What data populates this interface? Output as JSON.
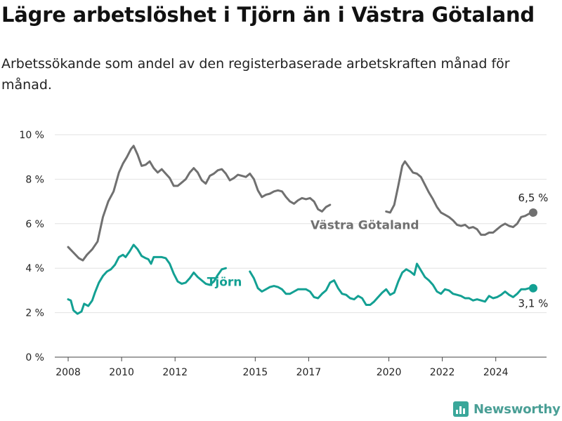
{
  "header": {
    "title": "Lägre arbetslöshet i Tjörn än i Västra Götaland",
    "subtitle": "Arbetssökande som andel av den registerbaserade arbetskraften månad för månad."
  },
  "brand": {
    "name": "Newsworthy",
    "logo_icon": "newsworthy-chart-logo-icon"
  },
  "colors": {
    "vg": "#707070",
    "tjorn": "#13a093",
    "grid": "#e2e2e2",
    "axis": "#444444",
    "text": "#222222"
  },
  "chart_data": {
    "type": "line",
    "title": "Lägre arbetslöshet i Tjörn än i Västra Götaland",
    "subtitle": "Arbetssökande som andel av den registerbaserade arbetskraften månad för månad.",
    "xlabel": "",
    "ylabel": "",
    "xlim": [
      2007.5,
      2025.9
    ],
    "ylim": [
      0,
      10
    ],
    "x_ticks": [
      2008,
      2010,
      2012,
      2015,
      2017,
      2020,
      2022,
      2024
    ],
    "y_ticks": [
      0,
      2,
      4,
      6,
      8,
      10
    ],
    "y_tick_labels": [
      "0 %",
      "2 %",
      "4 %",
      "6 %",
      "8 %",
      "10 %"
    ],
    "grid": "horizontal",
    "series": [
      {
        "name": "Västra Götaland",
        "key": "vg",
        "end_label": "6,5 %",
        "points": [
          [
            2008.0,
            4.95
          ],
          [
            2008.2,
            4.7
          ],
          [
            2008.4,
            4.45
          ],
          [
            2008.55,
            4.35
          ],
          [
            2008.7,
            4.6
          ],
          [
            2008.9,
            4.85
          ],
          [
            2009.1,
            5.2
          ],
          [
            2009.3,
            6.3
          ],
          [
            2009.5,
            7.0
          ],
          [
            2009.7,
            7.45
          ],
          [
            2009.9,
            8.3
          ],
          [
            2010.05,
            8.7
          ],
          [
            2010.2,
            9.0
          ],
          [
            2010.35,
            9.35
          ],
          [
            2010.45,
            9.5
          ],
          [
            2010.6,
            9.1
          ],
          [
            2010.75,
            8.6
          ],
          [
            2010.9,
            8.65
          ],
          [
            2011.05,
            8.8
          ],
          [
            2011.2,
            8.5
          ],
          [
            2011.35,
            8.3
          ],
          [
            2011.5,
            8.45
          ],
          [
            2011.65,
            8.25
          ],
          [
            2011.8,
            8.05
          ],
          [
            2011.95,
            7.7
          ],
          [
            2012.1,
            7.7
          ],
          [
            2012.25,
            7.85
          ],
          [
            2012.4,
            8.0
          ],
          [
            2012.55,
            8.3
          ],
          [
            2012.7,
            8.5
          ],
          [
            2012.85,
            8.3
          ],
          [
            2013.0,
            7.95
          ],
          [
            2013.15,
            7.8
          ],
          [
            2013.3,
            8.15
          ],
          [
            2013.45,
            8.25
          ],
          [
            2013.6,
            8.4
          ],
          [
            2013.75,
            8.45
          ],
          [
            2013.9,
            8.25
          ],
          [
            2014.05,
            7.95
          ],
          [
            2014.2,
            8.05
          ],
          [
            2014.35,
            8.2
          ],
          [
            2014.5,
            8.15
          ],
          [
            2014.65,
            8.1
          ],
          [
            2014.8,
            8.25
          ],
          [
            2014.95,
            8.0
          ],
          [
            2015.1,
            7.5
          ],
          [
            2015.25,
            7.2
          ],
          [
            2015.4,
            7.3
          ],
          [
            2015.55,
            7.35
          ],
          [
            2015.7,
            7.45
          ],
          [
            2015.85,
            7.5
          ],
          [
            2016.0,
            7.45
          ],
          [
            2016.15,
            7.2
          ],
          [
            2016.3,
            7.0
          ],
          [
            2016.45,
            6.9
          ],
          [
            2016.6,
            7.05
          ],
          [
            2016.75,
            7.15
          ],
          [
            2016.9,
            7.1
          ],
          [
            2017.05,
            7.15
          ],
          [
            2017.2,
            7.0
          ],
          [
            2017.35,
            6.65
          ],
          [
            2017.5,
            6.55
          ],
          [
            2017.65,
            6.75
          ],
          [
            2017.8,
            6.85
          ],
          [
            2017.95,
            6.85
          ],
          [
            2018.1,
            6.7
          ],
          [
            2018.25,
            6.55
          ],
          [
            2018.4,
            6.5
          ],
          [
            2018.55,
            6.45
          ],
          [
            2018.7,
            6.4
          ],
          [
            2018.85,
            6.45
          ],
          [
            2019.0,
            6.4
          ],
          [
            2019.15,
            6.3
          ],
          [
            2019.3,
            6.3
          ],
          [
            2019.45,
            6.35
          ],
          [
            2019.6,
            6.45
          ],
          [
            2019.75,
            6.5
          ],
          [
            2019.9,
            6.55
          ],
          [
            2020.05,
            6.5
          ],
          [
            2020.2,
            6.85
          ],
          [
            2020.35,
            7.7
          ],
          [
            2020.5,
            8.6
          ],
          [
            2020.6,
            8.8
          ],
          [
            2020.75,
            8.55
          ],
          [
            2020.9,
            8.3
          ],
          [
            2021.05,
            8.25
          ],
          [
            2021.2,
            8.1
          ],
          [
            2021.35,
            7.75
          ],
          [
            2021.5,
            7.4
          ],
          [
            2021.65,
            7.1
          ],
          [
            2021.8,
            6.75
          ],
          [
            2021.95,
            6.5
          ],
          [
            2022.1,
            6.4
          ],
          [
            2022.25,
            6.3
          ],
          [
            2022.4,
            6.15
          ],
          [
            2022.55,
            5.95
          ],
          [
            2022.7,
            5.9
          ],
          [
            2022.85,
            5.95
          ],
          [
            2023.0,
            5.8
          ],
          [
            2023.15,
            5.85
          ],
          [
            2023.3,
            5.75
          ],
          [
            2023.45,
            5.5
          ],
          [
            2023.6,
            5.5
          ],
          [
            2023.75,
            5.6
          ],
          [
            2023.9,
            5.6
          ],
          [
            2024.05,
            5.75
          ],
          [
            2024.2,
            5.9
          ],
          [
            2024.35,
            6.0
          ],
          [
            2024.5,
            5.9
          ],
          [
            2024.65,
            5.85
          ],
          [
            2024.8,
            6.0
          ],
          [
            2024.95,
            6.3
          ],
          [
            2025.1,
            6.35
          ],
          [
            2025.25,
            6.45
          ],
          [
            2025.4,
            6.5
          ]
        ]
      },
      {
        "name": "Tjörn",
        "key": "tjorn",
        "end_label": "3,1 %",
        "points": [
          [
            2008.0,
            2.6
          ],
          [
            2008.1,
            2.55
          ],
          [
            2008.2,
            2.1
          ],
          [
            2008.35,
            1.95
          ],
          [
            2008.5,
            2.05
          ],
          [
            2008.6,
            2.4
          ],
          [
            2008.75,
            2.3
          ],
          [
            2008.9,
            2.55
          ],
          [
            2009.0,
            2.9
          ],
          [
            2009.15,
            3.35
          ],
          [
            2009.3,
            3.65
          ],
          [
            2009.45,
            3.85
          ],
          [
            2009.6,
            3.95
          ],
          [
            2009.75,
            4.15
          ],
          [
            2009.9,
            4.5
          ],
          [
            2010.05,
            4.6
          ],
          [
            2010.15,
            4.5
          ],
          [
            2010.3,
            4.75
          ],
          [
            2010.45,
            5.05
          ],
          [
            2010.6,
            4.85
          ],
          [
            2010.75,
            4.55
          ],
          [
            2010.9,
            4.45
          ],
          [
            2011.0,
            4.4
          ],
          [
            2011.1,
            4.2
          ],
          [
            2011.2,
            4.5
          ],
          [
            2011.35,
            4.5
          ],
          [
            2011.5,
            4.5
          ],
          [
            2011.65,
            4.45
          ],
          [
            2011.8,
            4.2
          ],
          [
            2011.95,
            3.75
          ],
          [
            2012.1,
            3.4
          ],
          [
            2012.25,
            3.3
          ],
          [
            2012.4,
            3.35
          ],
          [
            2012.55,
            3.55
          ],
          [
            2012.7,
            3.8
          ],
          [
            2012.85,
            3.6
          ],
          [
            2013.0,
            3.45
          ],
          [
            2013.15,
            3.3
          ],
          [
            2013.3,
            3.25
          ],
          [
            2013.45,
            3.4
          ],
          [
            2013.6,
            3.7
          ],
          [
            2013.75,
            3.95
          ],
          [
            2013.9,
            4.0
          ],
          [
            2014.05,
            3.75
          ],
          [
            2014.15,
            3.55
          ],
          [
            2014.35,
            3.4
          ],
          [
            2014.5,
            3.45
          ],
          [
            2014.65,
            3.75
          ],
          [
            2014.8,
            3.85
          ],
          [
            2014.95,
            3.55
          ],
          [
            2015.1,
            3.1
          ],
          [
            2015.25,
            2.95
          ],
          [
            2015.4,
            3.05
          ],
          [
            2015.55,
            3.15
          ],
          [
            2015.7,
            3.2
          ],
          [
            2015.85,
            3.15
          ],
          [
            2016.0,
            3.05
          ],
          [
            2016.15,
            2.85
          ],
          [
            2016.3,
            2.85
          ],
          [
            2016.45,
            2.95
          ],
          [
            2016.6,
            3.05
          ],
          [
            2016.75,
            3.05
          ],
          [
            2016.9,
            3.05
          ],
          [
            2017.05,
            2.95
          ],
          [
            2017.2,
            2.7
          ],
          [
            2017.35,
            2.65
          ],
          [
            2017.5,
            2.85
          ],
          [
            2017.65,
            3.0
          ],
          [
            2017.8,
            3.35
          ],
          [
            2017.95,
            3.45
          ],
          [
            2018.1,
            3.1
          ],
          [
            2018.25,
            2.85
          ],
          [
            2018.4,
            2.8
          ],
          [
            2018.55,
            2.65
          ],
          [
            2018.7,
            2.6
          ],
          [
            2018.85,
            2.75
          ],
          [
            2019.0,
            2.65
          ],
          [
            2019.15,
            2.35
          ],
          [
            2019.3,
            2.35
          ],
          [
            2019.45,
            2.5
          ],
          [
            2019.6,
            2.7
          ],
          [
            2019.75,
            2.9
          ],
          [
            2019.9,
            3.05
          ],
          [
            2020.05,
            2.8
          ],
          [
            2020.2,
            2.9
          ],
          [
            2020.35,
            3.4
          ],
          [
            2020.5,
            3.8
          ],
          [
            2020.65,
            3.95
          ],
          [
            2020.8,
            3.85
          ],
          [
            2020.95,
            3.7
          ],
          [
            2021.05,
            4.2
          ],
          [
            2021.2,
            3.9
          ],
          [
            2021.35,
            3.6
          ],
          [
            2021.5,
            3.45
          ],
          [
            2021.65,
            3.25
          ],
          [
            2021.8,
            2.95
          ],
          [
            2021.95,
            2.85
          ],
          [
            2022.1,
            3.05
          ],
          [
            2022.25,
            3.0
          ],
          [
            2022.4,
            2.85
          ],
          [
            2022.55,
            2.8
          ],
          [
            2022.7,
            2.75
          ],
          [
            2022.85,
            2.65
          ],
          [
            2023.0,
            2.65
          ],
          [
            2023.15,
            2.55
          ],
          [
            2023.3,
            2.6
          ],
          [
            2023.45,
            2.55
          ],
          [
            2023.6,
            2.5
          ],
          [
            2023.75,
            2.75
          ],
          [
            2023.9,
            2.65
          ],
          [
            2024.05,
            2.7
          ],
          [
            2024.2,
            2.8
          ],
          [
            2024.35,
            2.95
          ],
          [
            2024.5,
            2.8
          ],
          [
            2024.65,
            2.7
          ],
          [
            2024.8,
            2.85
          ],
          [
            2024.95,
            3.05
          ],
          [
            2025.1,
            3.05
          ],
          [
            2025.25,
            3.1
          ],
          [
            2025.4,
            3.1
          ]
        ]
      }
    ]
  }
}
